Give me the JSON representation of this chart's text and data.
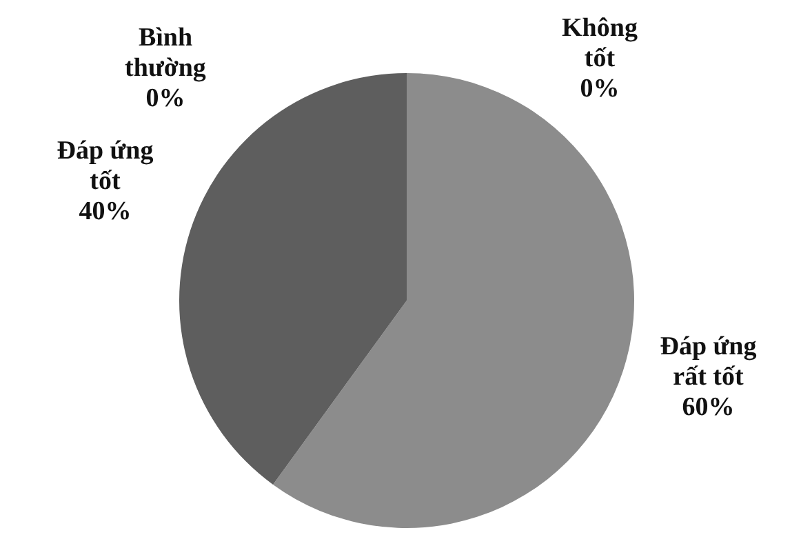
{
  "chart_data": {
    "type": "pie",
    "categories": [
      "Không tốt",
      "Đáp ứng rất tốt",
      "Đáp ứng tốt",
      "Bình thường"
    ],
    "values": [
      0,
      60,
      40,
      0
    ],
    "value_labels": [
      "0%",
      "60%",
      "40%",
      "0%"
    ],
    "colors": [
      "#3a3a3a",
      "#8c8c8c",
      "#5e5e5e",
      "#4a4a4a"
    ],
    "legend": false
  }
}
